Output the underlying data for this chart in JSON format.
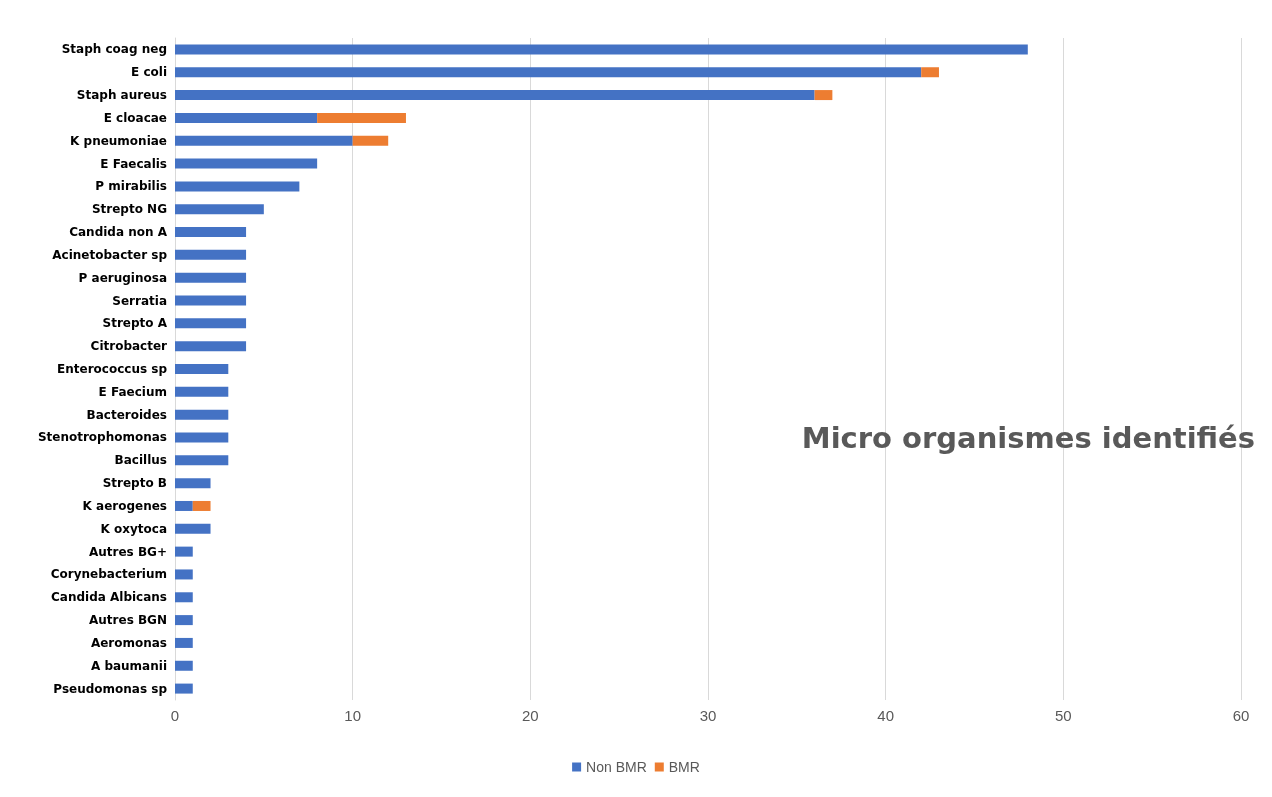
{
  "chart_data": {
    "type": "bar",
    "title": "Micro organismes identifiés",
    "orientation": "horizontal",
    "stacked": true,
    "categories": [
      "Staph coag neg",
      "E coli",
      "Staph aureus",
      "E cloacae",
      "K pneumoniae",
      "E Faecalis",
      "P mirabilis",
      "Strepto NG",
      "Candida non A",
      "Acinetobacter sp",
      "P aeruginosa",
      "Serratia",
      "Strepto A",
      "Citrobacter",
      "Enterococcus sp",
      "E Faecium",
      "Bacteroides",
      "Stenotrophomonas",
      "Bacillus",
      "Strepto B",
      "K aerogenes",
      "K oxytoca",
      "Autres BG+",
      "Corynebacterium",
      "Candida Albicans",
      "Autres BGN",
      "Aeromonas",
      "A baumanii",
      "Pseudomonas sp"
    ],
    "series": [
      {
        "name": "Non BMR",
        "color": "#4472c4",
        "values": [
          48,
          42,
          36,
          8,
          10,
          8,
          7,
          5,
          4,
          4,
          4,
          4,
          4,
          4,
          3,
          3,
          3,
          3,
          3,
          2,
          1,
          2,
          1,
          1,
          1,
          1,
          1,
          1,
          1
        ]
      },
      {
        "name": "BMR",
        "color": "#ed7d31",
        "values": [
          null,
          1,
          1,
          5,
          2,
          null,
          null,
          null,
          null,
          null,
          null,
          null,
          null,
          null,
          null,
          null,
          null,
          null,
          null,
          null,
          1,
          null,
          null,
          null,
          null,
          null,
          null,
          null,
          null
        ]
      }
    ],
    "xlim": [
      0,
      60
    ],
    "xticks": [
      0,
      10,
      20,
      30,
      40,
      50,
      60
    ],
    "grid": "x",
    "legend": "bottom"
  }
}
